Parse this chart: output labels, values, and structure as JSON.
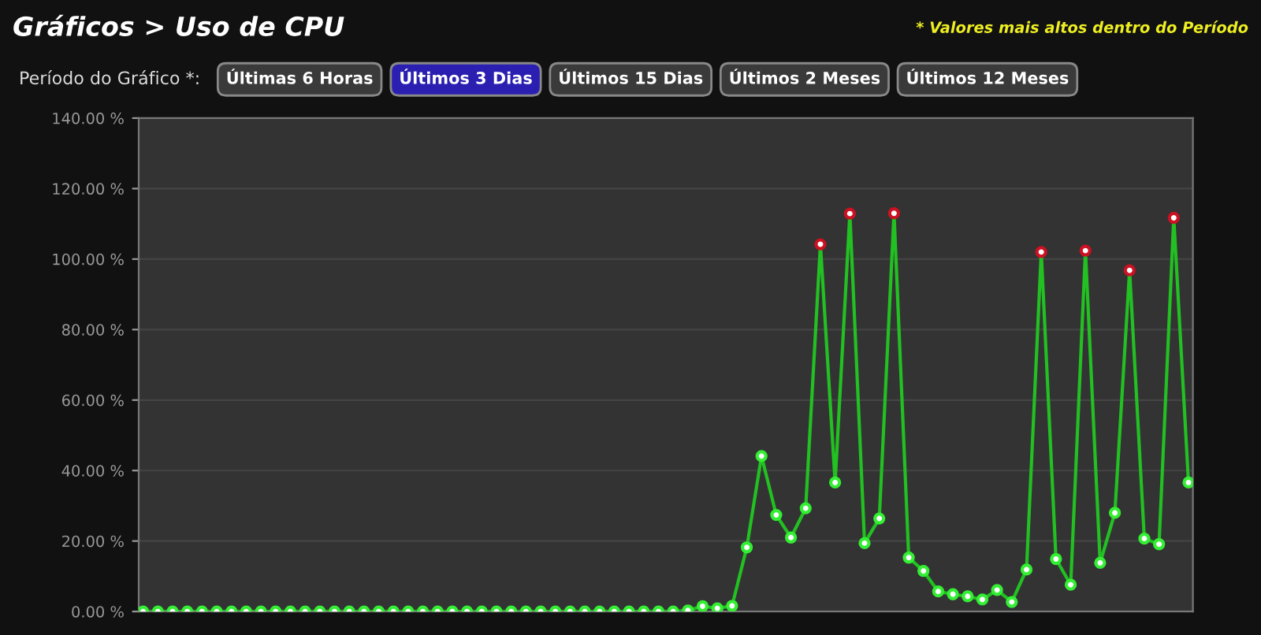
{
  "chart_data": {
    "type": "line",
    "title": "Gráficos > Uso de CPU",
    "subtitle": "* Valores mais altos dentro do Período",
    "annotations": [
      "Período do Gráfico *:",
      "Últimas 6 Horas",
      "Últimos 3 Dias",
      "Últimos 15 Dias",
      "Últimos 2 Meses",
      "Últimos 12 Meses"
    ],
    "categories": [
      null,
      null,
      null,
      null,
      null,
      null,
      null,
      null,
      null,
      null,
      null,
      null,
      null,
      null,
      null,
      null,
      null,
      null,
      null,
      null,
      null,
      null,
      null,
      null,
      null,
      null,
      null,
      null,
      null,
      null,
      null,
      null,
      null,
      null,
      null,
      null,
      null,
      null,
      null,
      null,
      null,
      null,
      null,
      null,
      null,
      null,
      null,
      null,
      null,
      null,
      null,
      null,
      null,
      null,
      null,
      null,
      null,
      null,
      null,
      null,
      null,
      null,
      null,
      null,
      null,
      null,
      null,
      null,
      null,
      null,
      null,
      null
    ],
    "series": [
      {
        "color": "#22c022",
        "values": [
          0,
          0,
          0,
          0,
          0,
          0,
          0,
          0,
          0,
          0,
          0,
          0,
          0,
          0,
          0,
          0,
          0,
          0,
          0,
          0,
          0,
          0,
          0,
          0,
          0,
          0,
          0,
          0,
          0,
          0,
          0,
          0,
          0,
          0,
          0,
          0,
          0,
          0.3,
          1.5,
          0.9,
          1.6,
          18.2,
          44.1,
          27.4,
          21.0,
          29.3,
          104.2,
          36.6,
          112.9,
          19.4,
          26.4,
          113.0,
          15.3,
          11.5,
          5.7,
          4.9,
          4.3,
          3.4,
          6.1,
          2.7,
          11.9,
          102.0,
          14.9,
          7.6,
          102.4,
          13.8,
          28.0,
          96.8,
          20.7,
          19.1,
          111.7,
          36.6
        ],
        "colors": [
          "#33ee33",
          "#33ee33",
          "#33ee33",
          "#33ee33",
          "#33ee33",
          "#33ee33",
          "#33ee33",
          "#33ee33",
          "#33ee33",
          "#33ee33",
          "#33ee33",
          "#33ee33",
          "#33ee33",
          "#33ee33",
          "#33ee33",
          "#33ee33",
          "#33ee33",
          "#33ee33",
          "#33ee33",
          "#33ee33",
          "#33ee33",
          "#33ee33",
          "#33ee33",
          "#33ee33",
          "#33ee33",
          "#33ee33",
          "#33ee33",
          "#33ee33",
          "#33ee33",
          "#33ee33",
          "#33ee33",
          "#33ee33",
          "#33ee33",
          "#33ee33",
          "#33ee33",
          "#33ee33",
          "#33ee33",
          "#33ee33",
          "#33ee33",
          "#33ee33",
          "#33ee33",
          "#33ee33",
          "#33ee33",
          "#33ee33",
          "#33ee33",
          "#33ee33",
          "#cc1122",
          "#33ee33",
          "#cc1122",
          "#33ee33",
          "#33ee33",
          "#cc1122",
          "#33ee33",
          "#33ee33",
          "#33ee33",
          "#33ee33",
          "#33ee33",
          "#33ee33",
          "#33ee33",
          "#33ee33",
          "#33ee33",
          "#cc1122",
          "#33ee33",
          "#33ee33",
          "#cc1122",
          "#33ee33",
          "#33ee33",
          "#cc1122",
          "#33ee33",
          "#33ee33",
          "#cc1122",
          "#33ee33"
        ]
      }
    ],
    "ylim": [
      0,
      140
    ],
    "yticks": [
      {
        "value": 0,
        "label": "0.00 %"
      },
      {
        "value": 20,
        "label": "20.00 %"
      },
      {
        "value": 40,
        "label": "40.00 %"
      },
      {
        "value": 60,
        "label": "60.00 %"
      },
      {
        "value": 80,
        "label": "80.00 %"
      },
      {
        "value": 100,
        "label": "100.00 %"
      },
      {
        "value": 120,
        "label": "120.00 %"
      },
      {
        "value": 140,
        "label": "140.00 %"
      }
    ],
    "grid": "y",
    "marker": "circle",
    "line_style": "solid",
    "tick_labels": "y"
  }
}
